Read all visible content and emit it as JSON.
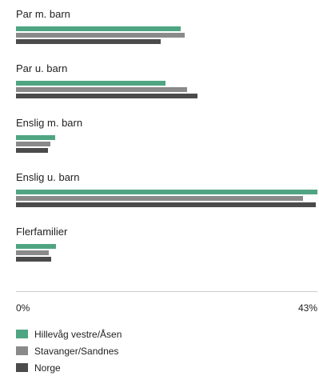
{
  "chart_data": {
    "type": "bar",
    "orientation": "horizontal",
    "categories": [
      "Par m. barn",
      "Par u. barn",
      "Enslig m. barn",
      "Enslig u. barn",
      "Flerfamilier"
    ],
    "series": [
      {
        "name": "Hillevåg vestre/Åsen",
        "color": "#4fa582",
        "values": [
          23.5,
          21.3,
          5.6,
          43.0,
          5.7
        ]
      },
      {
        "name": "Stavanger/Sandnes",
        "color": "#8a8a8a",
        "values": [
          24.1,
          24.4,
          4.9,
          41.0,
          4.7
        ]
      },
      {
        "name": "Norge",
        "color": "#4b4b4b",
        "values": [
          20.6,
          25.9,
          4.6,
          42.8,
          5.0
        ]
      }
    ],
    "xlim": [
      0,
      43
    ],
    "tick_labels": [
      "0%",
      "43%"
    ],
    "legend_position": "bottom-left",
    "grid": false
  }
}
